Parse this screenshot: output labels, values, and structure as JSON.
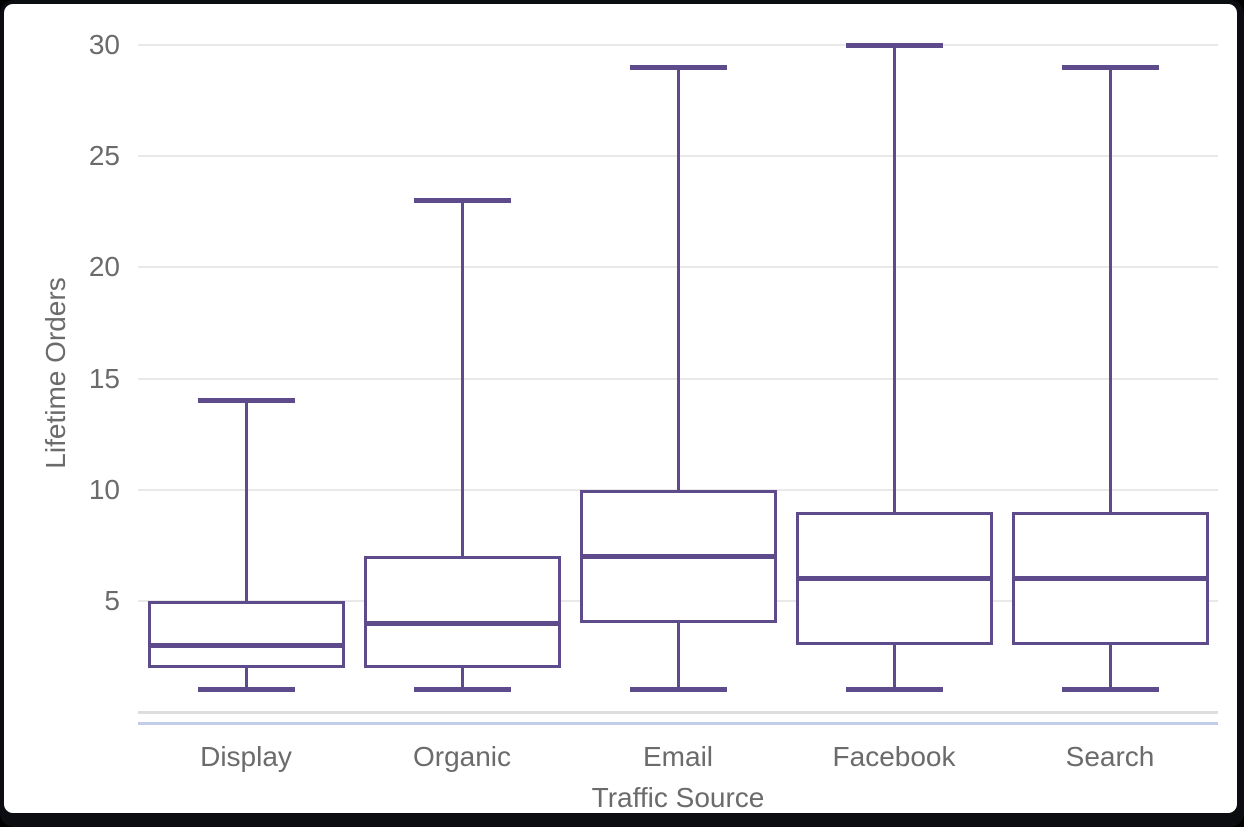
{
  "chart_data": {
    "type": "boxplot",
    "title": "",
    "xlabel": "Traffic Source",
    "ylabel": "Lifetime Orders",
    "categories": [
      "Display",
      "Organic",
      "Email",
      "Facebook",
      "Search"
    ],
    "boxes": [
      {
        "category": "Display",
        "min": 1,
        "q1": 2,
        "median": 3,
        "q3": 5,
        "max": 14
      },
      {
        "category": "Organic",
        "min": 1,
        "q1": 2,
        "median": 4,
        "q3": 7,
        "max": 23
      },
      {
        "category": "Email",
        "min": 1,
        "q1": 4,
        "median": 7,
        "q3": 10,
        "max": 29
      },
      {
        "category": "Facebook",
        "min": 1,
        "q1": 3,
        "median": 6,
        "q3": 9,
        "max": 30
      },
      {
        "category": "Search",
        "min": 1,
        "q1": 3,
        "median": 6,
        "q3": 9,
        "max": 29
      }
    ],
    "yticks": [
      5,
      10,
      15,
      20,
      25,
      30
    ],
    "ylim": [
      0,
      30.5
    ],
    "grid": true,
    "legend": "none"
  },
  "colors": {
    "box_stroke": "#5e4b8b",
    "median": "#5e4b8b",
    "whisker": "#5e4b8b",
    "gridline": "#e9e9e9",
    "axis_line": "#dedede",
    "axis_accent_line": "#c2cde9",
    "text": "#6b6b6b",
    "plot_background": "#ffffff",
    "frame_border": "#0c0d10"
  }
}
